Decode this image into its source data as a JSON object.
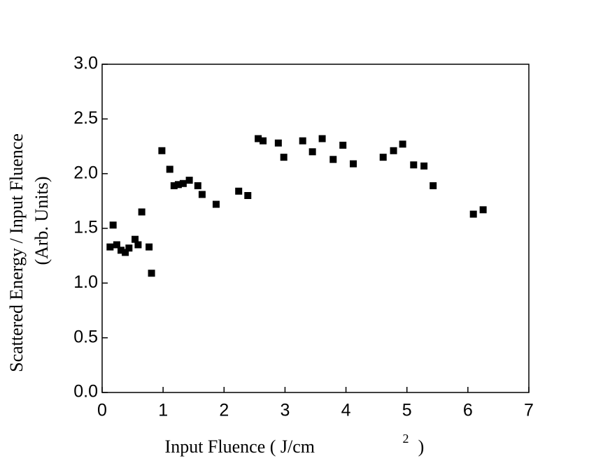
{
  "chart_data": {
    "type": "scatter",
    "x_label": {
      "text": "Input Fluence ( J/cm",
      "superscript": "2",
      "suffix": ")"
    },
    "y_label": [
      "Scattered Energy / Input Fluence",
      "(Arb. Units)"
    ],
    "color": "#000000",
    "x": [
      0.13,
      0.18,
      0.24,
      0.31,
      0.38,
      0.44,
      0.54,
      0.59,
      0.65,
      0.77,
      0.81,
      0.98,
      1.11,
      1.18,
      1.25,
      1.33,
      1.43,
      1.57,
      1.64,
      1.87,
      2.24,
      2.39,
      2.56,
      2.64,
      2.89,
      2.98,
      3.29,
      3.45,
      3.61,
      3.79,
      3.95,
      4.12,
      4.61,
      4.78,
      4.93,
      5.11,
      5.28,
      5.43,
      6.09,
      6.25
    ],
    "values": [
      1.33,
      1.53,
      1.35,
      1.3,
      1.28,
      1.32,
      1.4,
      1.35,
      1.65,
      1.33,
      1.09,
      2.21,
      2.04,
      1.89,
      1.9,
      1.91,
      1.94,
      1.89,
      1.81,
      1.72,
      1.84,
      1.8,
      2.32,
      2.3,
      2.28,
      2.15,
      2.3,
      2.2,
      2.32,
      2.13,
      2.26,
      2.09,
      2.15,
      2.21,
      2.27,
      2.08,
      2.07,
      1.89,
      1.63,
      1.67
    ],
    "xlim": [
      0,
      7
    ],
    "xticks": [
      0,
      1,
      2,
      3,
      4,
      5,
      6,
      7
    ],
    "ylim": [
      0,
      3
    ],
    "yticks": [
      {
        "value": 0,
        "label": "0.0"
      },
      0.5,
      {
        "value": 1,
        "label": "1.0"
      },
      1.5,
      {
        "value": 2,
        "label": "2.0"
      },
      2.5,
      {
        "value": 3,
        "label": "3.0"
      }
    ],
    "grid": false
  }
}
